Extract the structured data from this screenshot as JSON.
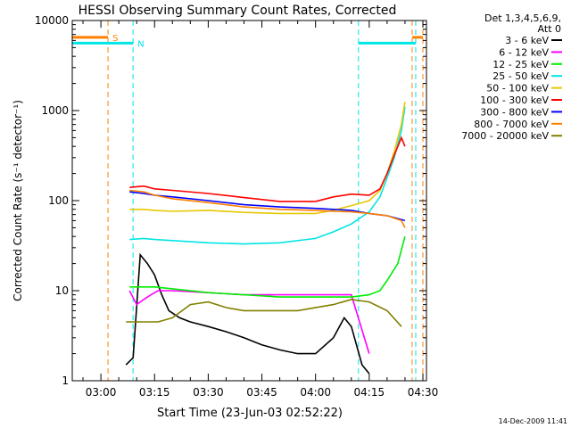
{
  "chart_data": {
    "type": "line",
    "title": "HESSI Observing Summary Count Rates, Corrected",
    "xlabel": "Start Time (23-Jun-03 02:52:22)",
    "ylabel": "Corrected Count Rate (s⁻¹ detector⁻¹)",
    "y_scale": "log",
    "ylim": [
      1,
      10000
    ],
    "xlim": [
      "02:52",
      "04:31"
    ],
    "x_ticks": [
      "03:00",
      "03:15",
      "03:30",
      "03:45",
      "04:00",
      "04:15",
      "04:30"
    ],
    "y_ticks": [
      "1",
      "10",
      "100",
      "1000",
      "10000"
    ],
    "grid": false,
    "legend_position": "right",
    "legend_header": [
      "Det 1,3,4,5,6,9,",
      "Att 0"
    ],
    "flags": [
      {
        "label": "S",
        "color": "#ff8000",
        "segments": [
          [
            "02:52",
            "03:02"
          ],
          [
            "04:27",
            "04:30"
          ]
        ]
      },
      {
        "label": "N",
        "color": "#00e5e5",
        "segments": [
          [
            "02:52",
            "03:09"
          ],
          [
            "04:12",
            "04:28"
          ]
        ]
      }
    ],
    "series": [
      {
        "name": "3 - 6 keV",
        "color": "#000000",
        "x": [
          "03:07",
          "03:09",
          "03:11",
          "03:13",
          "03:15",
          "03:17",
          "03:19",
          "03:22",
          "03:25",
          "03:30",
          "03:35",
          "03:40",
          "03:45",
          "03:50",
          "03:55",
          "04:00",
          "04:05",
          "04:08",
          "04:10",
          "04:13",
          "04:15"
        ],
        "values": [
          1.5,
          1.8,
          25,
          20,
          15,
          9,
          6,
          5,
          4.5,
          4,
          3.5,
          3,
          2.5,
          2.2,
          2,
          2,
          3,
          5,
          4,
          1.5,
          1.2
        ]
      },
      {
        "name": "6 - 12 keV",
        "color": "#ff00ff",
        "x": [
          "03:08",
          "03:10",
          "03:12",
          "03:14",
          "03:16",
          "03:20",
          "03:30",
          "03:40",
          "03:50",
          "04:00",
          "04:10",
          "04:15"
        ],
        "values": [
          10,
          7,
          8,
          9,
          10,
          10,
          9.5,
          9,
          9,
          9,
          9,
          2
        ]
      },
      {
        "name": "12 - 25 keV",
        "color": "#00ee00",
        "x": [
          "03:08",
          "03:12",
          "03:15",
          "03:20",
          "03:30",
          "03:40",
          "03:50",
          "04:00",
          "04:05",
          "04:10",
          "04:15",
          "04:18",
          "04:20",
          "04:23",
          "04:25"
        ],
        "values": [
          11,
          11,
          11,
          10.5,
          9.5,
          9,
          8.5,
          8.5,
          8.5,
          8.5,
          9,
          10,
          13,
          20,
          40
        ]
      },
      {
        "name": "25 - 50 keV",
        "color": "#00e5e5",
        "x": [
          "03:08",
          "03:12",
          "03:15",
          "03:20",
          "03:30",
          "03:40",
          "03:50",
          "04:00",
          "04:05",
          "04:10",
          "04:15",
          "04:18",
          "04:20",
          "04:22",
          "04:24",
          "04:25"
        ],
        "values": [
          37,
          38,
          37,
          36,
          34,
          33,
          34,
          38,
          45,
          55,
          75,
          110,
          180,
          300,
          600,
          1100
        ]
      },
      {
        "name": "50 - 100 keV",
        "color": "#e5c800",
        "x": [
          "03:08",
          "03:12",
          "03:15",
          "03:20",
          "03:30",
          "03:40",
          "03:50",
          "04:00",
          "04:05",
          "04:10",
          "04:15",
          "04:18",
          "04:20",
          "04:22",
          "04:24",
          "04:25"
        ],
        "values": [
          80,
          80,
          78,
          76,
          78,
          74,
          72,
          72,
          78,
          88,
          100,
          130,
          200,
          350,
          700,
          1250
        ]
      },
      {
        "name": "100 - 300 keV",
        "color": "#ff0000",
        "x": [
          "03:08",
          "03:12",
          "03:15",
          "03:20",
          "03:30",
          "03:40",
          "03:50",
          "04:00",
          "04:05",
          "04:10",
          "04:15",
          "04:18",
          "04:20",
          "04:22",
          "04:24",
          "04:25"
        ],
        "values": [
          140,
          145,
          135,
          130,
          120,
          108,
          98,
          98,
          110,
          118,
          115,
          135,
          200,
          320,
          500,
          400
        ]
      },
      {
        "name": "300 - 800 keV",
        "color": "#0000ff",
        "x": [
          "03:08",
          "03:12",
          "03:15",
          "03:20",
          "03:30",
          "03:40",
          "03:50",
          "04:00",
          "04:05",
          "04:10",
          "04:15",
          "04:20",
          "04:25"
        ],
        "values": [
          125,
          120,
          115,
          110,
          100,
          90,
          85,
          82,
          80,
          78,
          72,
          68,
          60
        ]
      },
      {
        "name": "800 - 7000 keV",
        "color": "#ff8000",
        "x": [
          "03:08",
          "03:12",
          "03:15",
          "03:20",
          "03:30",
          "03:40",
          "03:50",
          "04:00",
          "04:05",
          "04:10",
          "04:15",
          "04:20",
          "04:24",
          "04:25"
        ],
        "values": [
          130,
          125,
          115,
          105,
          95,
          85,
          80,
          78,
          76,
          75,
          72,
          68,
          60,
          50
        ]
      },
      {
        "name": "7000 - 20000 keV",
        "color": "#808000",
        "x": [
          "03:07",
          "03:10",
          "03:13",
          "03:16",
          "03:20",
          "03:25",
          "03:30",
          "03:35",
          "03:40",
          "03:45",
          "03:50",
          "03:55",
          "04:00",
          "04:05",
          "04:10",
          "04:15",
          "04:20",
          "04:24"
        ],
        "values": [
          4.5,
          4.5,
          4.5,
          4.5,
          5,
          7,
          7.5,
          6.5,
          6,
          6,
          6,
          6,
          6.5,
          7,
          8,
          7.5,
          6,
          4
        ]
      }
    ]
  },
  "footer": {
    "timestamp": "14-Dec-2009 11:41"
  }
}
